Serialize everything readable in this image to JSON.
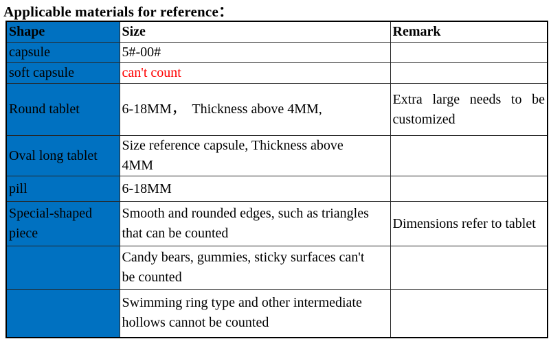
{
  "title": "Applicable materials for reference：",
  "colors": {
    "header_blue": "#0071c1",
    "red_text": "#ff0000",
    "border": "#000000"
  },
  "table": {
    "headers": [
      "Shape",
      "Size",
      "Remark"
    ],
    "rows": [
      {
        "shape": "capsule",
        "size": "5#-00#",
        "remark": ""
      },
      {
        "shape": "soft capsule",
        "size": "can't count",
        "remark": ""
      },
      {
        "shape": "Round tablet",
        "size": "6-18MM，  Thickness above 4MM,",
        "remark": "Extra large needs to be customized"
      },
      {
        "shape": "Oval long tablet",
        "size": "Size reference capsule, Thickness above\n4MM",
        "remark": ""
      },
      {
        "shape": "pill",
        "size": "6-18MM",
        "remark": ""
      },
      {
        "shape": "Special-shaped\npiece",
        "size": "Smooth and rounded edges, such as triangles\nthat can be counted",
        "remark": "Dimensions refer to tablet"
      },
      {
        "shape": "",
        "size": "Candy bears, gummies, sticky surfaces can't\nbe counted",
        "remark": ""
      },
      {
        "shape": "",
        "size": "Swimming ring type and other intermediate\nhollows cannot be counted",
        "remark": ""
      }
    ]
  }
}
